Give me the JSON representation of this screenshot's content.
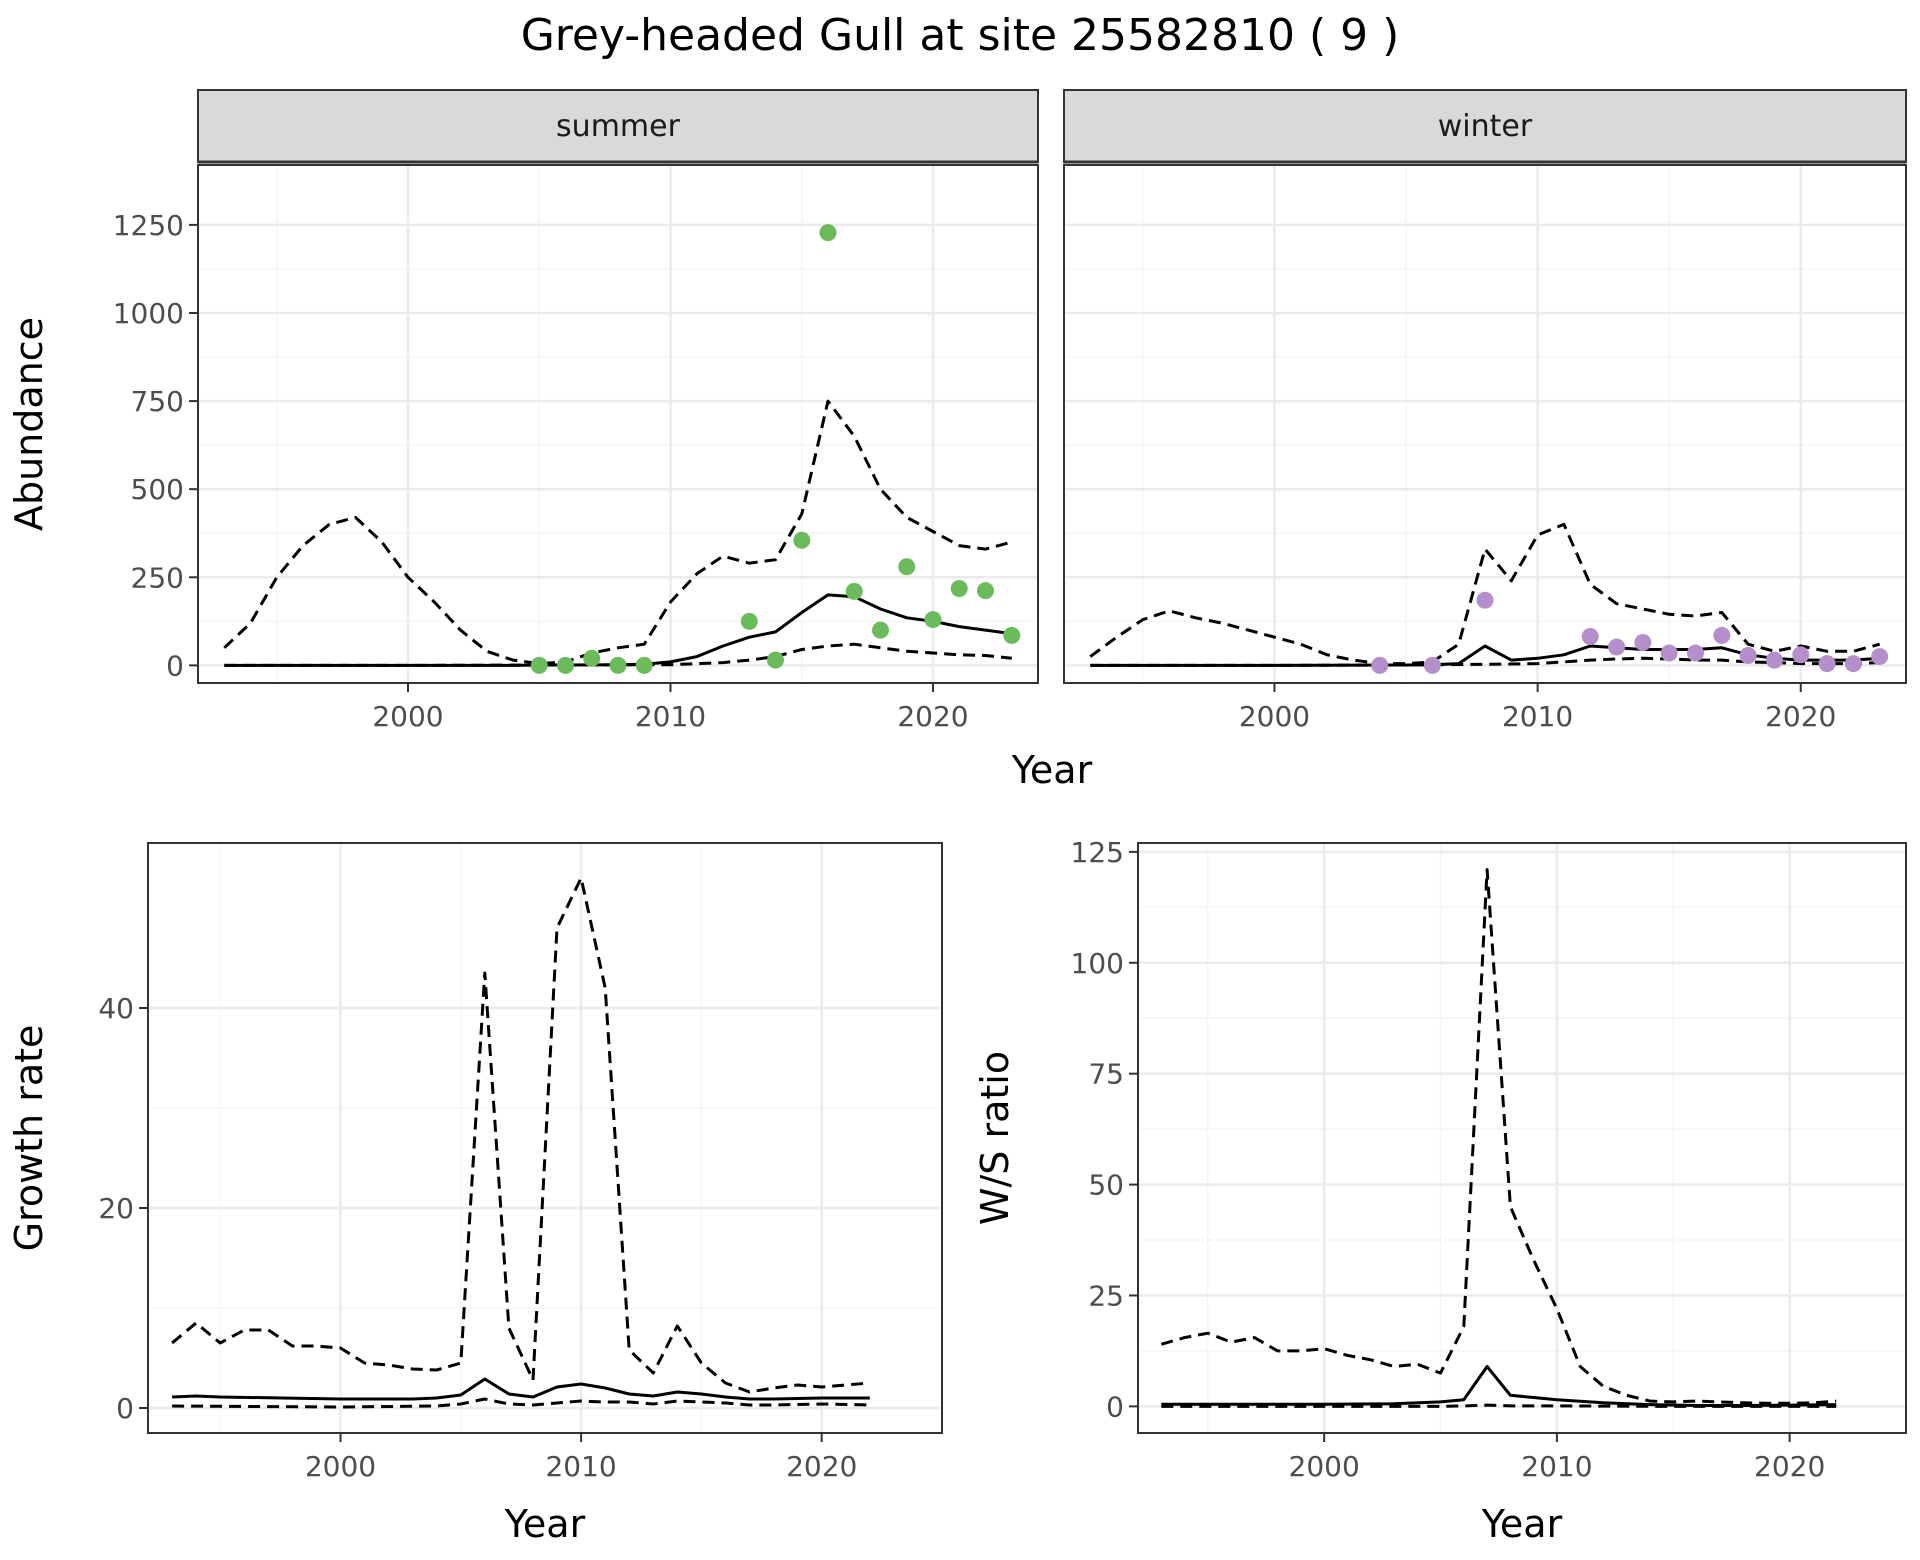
{
  "figure": {
    "title": "Grey-headed Gull at site 25582810 ( 9 )"
  },
  "colors": {
    "summer_points": "#6BBB5C",
    "winter_points": "#B48FCB",
    "strip_fill": "#D9D9D9",
    "grid_major": "#EBEBEB",
    "line": "#000000"
  },
  "chart_data": [
    {
      "type": "line",
      "panel": "abundance-summer",
      "facet": "summer",
      "xlabel": "Year",
      "ylabel": "Abundance",
      "xlim": [
        1992,
        2024
      ],
      "ylim": [
        -50,
        1420
      ],
      "xticks": [
        2000,
        2010,
        2020
      ],
      "yticks": [
        0,
        250,
        500,
        750,
        1000,
        1250
      ],
      "grid": true,
      "series": [
        {
          "role": "estimate",
          "style": "solid",
          "x": [
            1993,
            1995,
            2000,
            2004,
            2005,
            2006,
            2008,
            2009,
            2010,
            2011,
            2012,
            2013,
            2014,
            2015,
            2016,
            2017,
            2018,
            2019,
            2020,
            2021,
            2022,
            2023
          ],
          "y": [
            0,
            0,
            0,
            0,
            1,
            1,
            2,
            3,
            10,
            25,
            55,
            80,
            95,
            150,
            200,
            195,
            160,
            135,
            125,
            110,
            100,
            90
          ]
        },
        {
          "role": "lower",
          "style": "dashed",
          "x": [
            1993,
            2000,
            2010,
            2012,
            2013,
            2014,
            2015,
            2016,
            2017,
            2018,
            2019,
            2020,
            2021,
            2022,
            2023
          ],
          "y": [
            0,
            0,
            2,
            8,
            15,
            25,
            45,
            55,
            60,
            50,
            40,
            35,
            30,
            28,
            20
          ]
        },
        {
          "role": "upper",
          "style": "dashed",
          "x": [
            1993,
            1994,
            1995,
            1996,
            1997,
            1998,
            1999,
            2000,
            2001,
            2002,
            2003,
            2004,
            2005,
            2006,
            2007,
            2008,
            2009,
            2010,
            2011,
            2012,
            2013,
            2014,
            2015,
            2016,
            2017,
            2018,
            2019,
            2020,
            2021,
            2022,
            2023
          ],
          "y": [
            50,
            120,
            250,
            340,
            400,
            420,
            350,
            250,
            180,
            100,
            40,
            15,
            5,
            10,
            35,
            50,
            60,
            180,
            260,
            310,
            290,
            300,
            430,
            750,
            650,
            500,
            420,
            380,
            340,
            330,
            350
          ]
        }
      ],
      "points": {
        "x": [
          2005,
          2006,
          2007,
          2008,
          2009,
          2013,
          2014,
          2015,
          2016,
          2017,
          2018,
          2019,
          2020,
          2021,
          2022,
          2023
        ],
        "y": [
          0,
          0,
          20,
          0,
          0,
          125,
          15,
          355,
          1228,
          210,
          100,
          280,
          130,
          218,
          212,
          85
        ]
      }
    },
    {
      "type": "line",
      "panel": "abundance-winter",
      "facet": "winter",
      "xlabel": "Year",
      "ylabel": "Abundance",
      "xlim": [
        1992,
        2024
      ],
      "ylim": [
        -50,
        1420
      ],
      "xticks": [
        2000,
        2010,
        2020
      ],
      "yticks": [
        0,
        250,
        500,
        750,
        1000,
        1250
      ],
      "grid": true,
      "series": [
        {
          "role": "estimate",
          "style": "solid",
          "x": [
            1993,
            2000,
            2005,
            2006,
            2007,
            2008,
            2009,
            2010,
            2011,
            2012,
            2013,
            2014,
            2015,
            2016,
            2017,
            2018,
            2019,
            2020,
            2021,
            2022,
            2023
          ],
          "y": [
            0,
            0,
            1,
            2,
            5,
            55,
            15,
            20,
            30,
            55,
            50,
            45,
            45,
            45,
            50,
            30,
            20,
            15,
            15,
            15,
            20
          ]
        },
        {
          "role": "lower",
          "style": "dashed",
          "x": [
            1993,
            2000,
            2005,
            2008,
            2010,
            2011,
            2012,
            2013,
            2014,
            2015,
            2016,
            2017,
            2018,
            2019,
            2020,
            2021,
            2022,
            2023
          ],
          "y": [
            0,
            0,
            1,
            3,
            5,
            10,
            15,
            18,
            20,
            18,
            15,
            15,
            10,
            8,
            5,
            5,
            5,
            8
          ]
        },
        {
          "role": "upper",
          "style": "dashed",
          "x": [
            1993,
            1994,
            1995,
            1996,
            1997,
            1998,
            1999,
            2000,
            2001,
            2002,
            2003,
            2004,
            2005,
            2006,
            2007,
            2008,
            2009,
            2010,
            2011,
            2012,
            2013,
            2014,
            2015,
            2016,
            2017,
            2018,
            2019,
            2020,
            2021,
            2022,
            2023
          ],
          "y": [
            25,
            80,
            130,
            155,
            135,
            120,
            100,
            80,
            60,
            30,
            15,
            5,
            5,
            10,
            60,
            330,
            240,
            370,
            400,
            230,
            175,
            160,
            145,
            140,
            150,
            60,
            40,
            55,
            40,
            40,
            60
          ]
        }
      ],
      "points": {
        "x": [
          2004,
          2006,
          2008,
          2012,
          2013,
          2014,
          2015,
          2016,
          2017,
          2018,
          2019,
          2020,
          2021,
          2022,
          2023
        ],
        "y": [
          0,
          0,
          185,
          82,
          52,
          65,
          35,
          35,
          85,
          28,
          15,
          30,
          5,
          5,
          25
        ]
      }
    },
    {
      "type": "line",
      "panel": "growth-rate",
      "xlabel": "Year",
      "ylabel": "Growth rate",
      "xlim": [
        1992,
        2025
      ],
      "ylim": [
        -2.5,
        56.5
      ],
      "xticks": [
        2000,
        2010,
        2020
      ],
      "yticks": [
        0,
        20,
        40
      ],
      "grid": true,
      "series": [
        {
          "role": "estimate",
          "style": "solid",
          "x": [
            1993,
            1994,
            1995,
            2000,
            2003,
            2004,
            2005,
            2006,
            2007,
            2008,
            2009,
            2010,
            2011,
            2012,
            2013,
            2014,
            2015,
            2016,
            2017,
            2018,
            2020,
            2022
          ],
          "y": [
            1.1,
            1.2,
            1.1,
            0.9,
            0.9,
            1.0,
            1.3,
            2.9,
            1.4,
            1.1,
            2.1,
            2.4,
            2.0,
            1.4,
            1.2,
            1.6,
            1.4,
            1.1,
            0.9,
            0.9,
            1.0,
            1.0
          ]
        },
        {
          "role": "lower",
          "style": "dashed",
          "x": [
            1993,
            2000,
            2004,
            2005,
            2006,
            2007,
            2008,
            2009,
            2010,
            2011,
            2012,
            2013,
            2014,
            2015,
            2016,
            2017,
            2018,
            2020,
            2022
          ],
          "y": [
            0.2,
            0.1,
            0.2,
            0.4,
            0.9,
            0.4,
            0.3,
            0.5,
            0.7,
            0.6,
            0.6,
            0.4,
            0.7,
            0.6,
            0.5,
            0.3,
            0.3,
            0.4,
            0.3
          ]
        },
        {
          "role": "upper",
          "style": "dashed",
          "x": [
            1993,
            1994,
            1995,
            1996,
            1997,
            1998,
            1999,
            2000,
            2001,
            2002,
            2003,
            2004,
            2005,
            2006,
            2007,
            2008,
            2009,
            2010,
            2011,
            2012,
            2013,
            2014,
            2015,
            2016,
            2017,
            2018,
            2019,
            2020,
            2021,
            2022
          ],
          "y": [
            6.5,
            8.5,
            6.5,
            7.8,
            7.8,
            6.2,
            6.2,
            6.0,
            4.5,
            4.3,
            3.9,
            3.8,
            4.5,
            43.5,
            8.0,
            2.8,
            48.0,
            53.0,
            42.0,
            5.8,
            3.5,
            8.2,
            4.5,
            2.5,
            1.6,
            2.0,
            2.3,
            2.1,
            2.3,
            2.5
          ]
        }
      ]
    },
    {
      "type": "line",
      "panel": "ws-ratio",
      "xlabel": "Year",
      "ylabel": "W/S ratio",
      "xlim": [
        1992,
        2025
      ],
      "ylim": [
        -6,
        127
      ],
      "xticks": [
        2000,
        2010,
        2020
      ],
      "yticks": [
        0,
        25,
        50,
        75,
        100,
        125
      ],
      "grid": true,
      "series": [
        {
          "role": "estimate",
          "style": "solid",
          "x": [
            1993,
            2000,
            2003,
            2005,
            2006,
            2007,
            2008,
            2010,
            2012,
            2014,
            2016,
            2018,
            2020,
            2022
          ],
          "y": [
            0.5,
            0.5,
            0.6,
            1.0,
            1.5,
            9.0,
            2.5,
            1.5,
            0.8,
            0.4,
            0.2,
            0.2,
            0.3,
            0.4
          ]
        },
        {
          "role": "lower",
          "style": "dashed",
          "x": [
            1993,
            2000,
            2005,
            2006,
            2007,
            2008,
            2010,
            2015,
            2022
          ],
          "y": [
            0,
            0,
            0,
            0.1,
            0.3,
            0.1,
            0.1,
            0,
            0
          ]
        },
        {
          "role": "upper",
          "style": "dashed",
          "x": [
            1993,
            1994,
            1995,
            1996,
            1997,
            1998,
            1999,
            2000,
            2001,
            2002,
            2003,
            2004,
            2005,
            2006,
            2007,
            2008,
            2009,
            2010,
            2011,
            2012,
            2013,
            2014,
            2015,
            2016,
            2017,
            2018,
            2019,
            2020,
            2021,
            2022
          ],
          "y": [
            14,
            15.5,
            16.5,
            14.5,
            15.5,
            12.5,
            12.5,
            13,
            11.5,
            10.5,
            9,
            9.5,
            7.5,
            18,
            121,
            45,
            33,
            22,
            9,
            4.5,
            2.5,
            1.2,
            1.0,
            1.2,
            1.0,
            0.8,
            0.7,
            0.7,
            0.8,
            1.2
          ]
        }
      ]
    }
  ]
}
